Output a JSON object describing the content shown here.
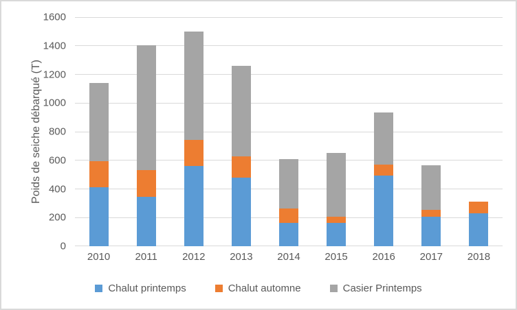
{
  "figure": {
    "background": "#ffffff",
    "border_color": "#d9d9d9",
    "text_color": "#595959",
    "gridline_color": "#d9d9d9"
  },
  "chart_data": {
    "type": "bar",
    "stacked": true,
    "title": "",
    "xlabel": "",
    "ylabel": "Poids de seiche débarqué (T)",
    "ylim": [
      0,
      1600
    ],
    "yticks": [
      0,
      200,
      400,
      600,
      800,
      1000,
      1200,
      1400,
      1600
    ],
    "grid": "horizontal",
    "legend_position": "bottom",
    "categories": [
      "2010",
      "2011",
      "2012",
      "2013",
      "2014",
      "2015",
      "2016",
      "2017",
      "2018"
    ],
    "series": [
      {
        "name": "Chalut printemps",
        "color": "#5B9BD5",
        "values": [
          410,
          345,
          560,
          480,
          165,
          165,
          495,
          205,
          230
        ]
      },
      {
        "name": "Chalut automne",
        "color": "#ED7D31",
        "values": [
          185,
          185,
          185,
          150,
          100,
          40,
          75,
          50,
          80
        ]
      },
      {
        "name": "Casier Printemps",
        "color": "#A5A5A5",
        "values": [
          545,
          875,
          755,
          630,
          345,
          445,
          365,
          310,
          0
        ]
      }
    ],
    "totals": [
      1140,
      1405,
      1500,
      1260,
      610,
      650,
      935,
      565,
      310
    ]
  }
}
